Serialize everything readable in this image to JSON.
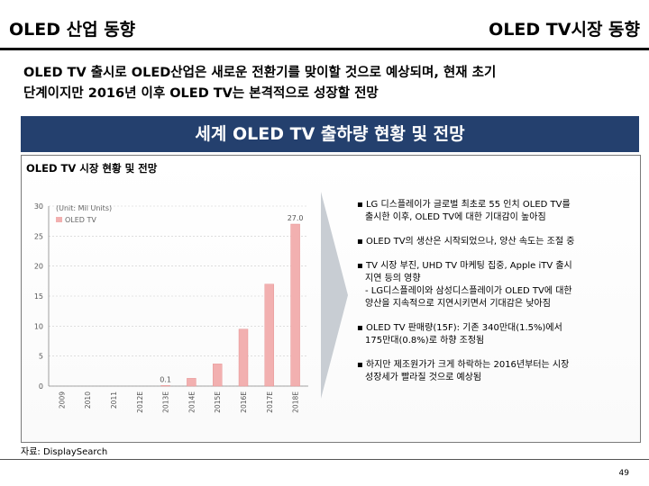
{
  "header": {
    "left_title": "OLED 산업 동향",
    "right_title": "OLED TV시장 동향"
  },
  "intro": {
    "line1": "OLED TV 출시로 OLED산업은 새로운 전환기를 맞이할 것으로 예상되며, 현재 초기",
    "line2": "단계이지만 2016년 이후 OLED TV는 본격적으로 성장할 전망"
  },
  "banner": {
    "title": "세계 OLED TV 출하량 현황 및 전망"
  },
  "panel": {
    "title": "OLED TV 시장 현황 및 전망"
  },
  "chart_data": {
    "type": "bar",
    "unit_label": "(Unit: Mil Units)",
    "legend": [
      "OLED TV"
    ],
    "categories": [
      "2009",
      "2010",
      "2011",
      "2012E",
      "2013E",
      "2014E",
      "2015E",
      "2016E",
      "2017E",
      "2018E"
    ],
    "series": [
      {
        "name": "OLED TV",
        "values": [
          0,
          0,
          0,
          0,
          0.1,
          1.3,
          3.7,
          9.5,
          17,
          27
        ]
      }
    ],
    "data_labels": [
      "",
      "",
      "",
      "",
      "0.1",
      "",
      "",
      "",
      "",
      "27.0"
    ],
    "yticks": [
      "0",
      "5",
      "10",
      "15",
      "20",
      "25",
      "30"
    ],
    "ylim": [
      0,
      30
    ],
    "colors": {
      "bar": "#f2b0b0",
      "bar_edge": "#e48b8b",
      "legend": "#f2b0b0",
      "grid": "#cccccc"
    }
  },
  "bullets": [
    {
      "lines": [
        "▪ LG 디스플레이가 글로벌 최초로 55 인치 OLED TV를",
        "출시한 이후, OLED TV에 대한 기대감이 높아짐"
      ]
    },
    {
      "lines": [
        "▪ OLED TV의 생산은 시작되었으나, 양산 속도는 조절 중"
      ]
    },
    {
      "lines": [
        "▪ TV 시장 부진, UHD TV 마케팅 집중, Apple iTV 출시",
        "지연 등의 영향",
        "- LG디스플레이와 삼성디스플레이가 OLED TV에 대한",
        "양산을 지속적으로 지연시키면서 기대감은 낮아짐"
      ]
    },
    {
      "lines": [
        "▪ OLED TV 판매량(15F): 기존 340만대(1.5%)에서",
        "175만대(0.8%)로 하향 조정됨"
      ]
    },
    {
      "lines": [
        "▪ 하지만 제조원가가 크게 하락하는 2016년부터는 시장",
        "성장세가 빨라질 것으로 예상됨"
      ]
    }
  ],
  "source": "자료: DisplaySearch",
  "page_number": "49",
  "colors": {
    "banner": "#24406e",
    "arrow": "#c8cdd3"
  }
}
